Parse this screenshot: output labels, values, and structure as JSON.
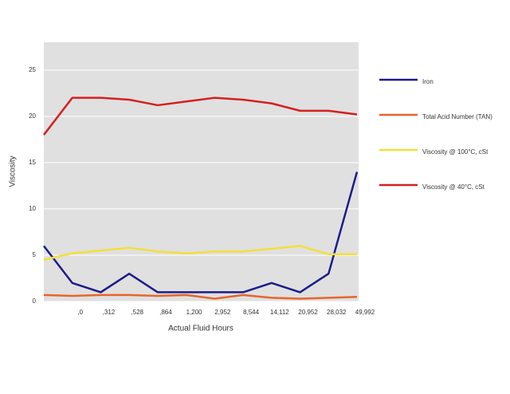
{
  "chart_data": {
    "type": "line",
    "categories": [
      null,
      ",0",
      ",312",
      ",528",
      ",864",
      "1,200",
      "2,952",
      "8,544",
      "14,112",
      "20,952",
      "28,032",
      "49,992"
    ],
    "x_label": "Actual Fluid Hours",
    "y_label": "Viscosity",
    "ylim": [
      0,
      28
    ],
    "yticks": [
      0,
      5,
      10,
      15,
      20,
      25
    ],
    "grid": true,
    "legend": "right",
    "series": [
      {
        "name": "Iron",
        "color": "#1c1c8a",
        "values": [
          6,
          2,
          1,
          3,
          1,
          1,
          1,
          1,
          2,
          1,
          3,
          14
        ]
      },
      {
        "name": "Total Acid Number (TAN)",
        "color": "#e8652a",
        "values": [
          0.7,
          0.6,
          0.7,
          0.7,
          0.6,
          0.7,
          0.3,
          0.7,
          0.4,
          0.3,
          0.4,
          0.5
        ]
      },
      {
        "name": "Viscosity @ 100°C, cSt",
        "color": "#f2e03a",
        "values": [
          4.5,
          5.2,
          5.5,
          5.8,
          5.4,
          5.2,
          5.4,
          5.4,
          5.7,
          6.0,
          5.1,
          5.1
        ]
      },
      {
        "name": "Viscosity @ 40°C, cSt",
        "color": "#d42020",
        "values": [
          18,
          22,
          22,
          21.8,
          21.2,
          21.6,
          22,
          21.8,
          21.4,
          20.6,
          20.6,
          20.2
        ]
      }
    ]
  }
}
